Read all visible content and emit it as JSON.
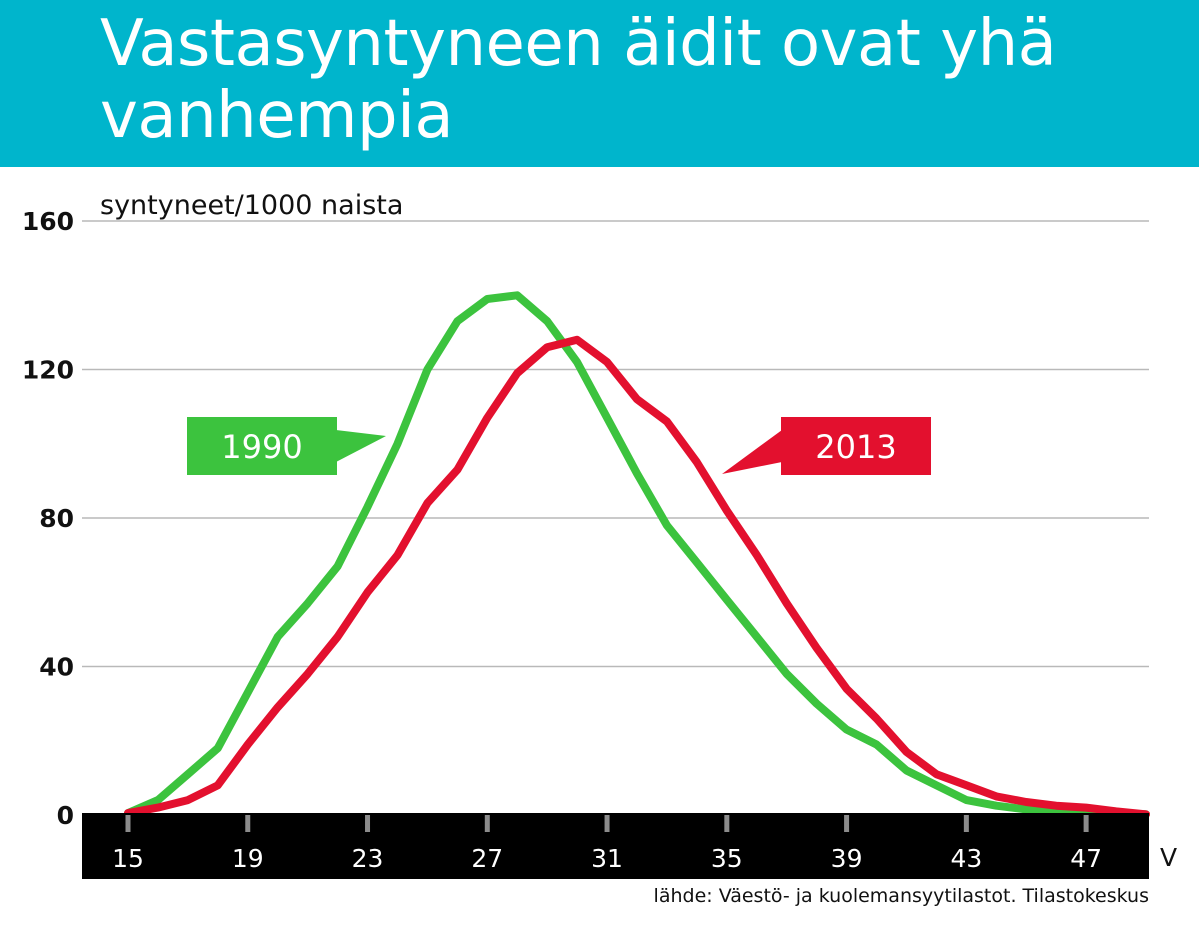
{
  "header": {
    "title": "Vastasyntyneen äidit ovat yhä vanhempia"
  },
  "chart_data": {
    "type": "line",
    "ylabel": "syntyneet/1000 naista",
    "xlabel": "V",
    "xlim": [
      15,
      49
    ],
    "ylim": [
      0,
      160
    ],
    "x_ticks": [
      15,
      19,
      23,
      27,
      31,
      35,
      39,
      43,
      47
    ],
    "y_ticks": [
      0,
      40,
      80,
      120,
      160
    ],
    "grid": true,
    "series": [
      {
        "name": "1990",
        "color": "#3cc33e",
        "x": [
          15,
          16,
          17,
          18,
          19,
          20,
          21,
          22,
          23,
          24,
          25,
          26,
          27,
          28,
          29,
          30,
          31,
          32,
          33,
          34,
          35,
          36,
          37,
          38,
          39,
          40,
          41,
          42,
          43,
          44,
          45,
          46,
          47,
          48,
          49
        ],
        "y": [
          0.5,
          4,
          11,
          18,
          33,
          48,
          57,
          67,
          83,
          100,
          120,
          133,
          139,
          140,
          133,
          122,
          107,
          92,
          78,
          68,
          58,
          48,
          38,
          30,
          23,
          19,
          12,
          8,
          4,
          2.5,
          1.5,
          1,
          0.8,
          0.5,
          0.2
        ]
      },
      {
        "name": "2013",
        "color": "#e3102e",
        "x": [
          15,
          16,
          17,
          18,
          19,
          20,
          21,
          22,
          23,
          24,
          25,
          26,
          27,
          28,
          29,
          30,
          31,
          32,
          33,
          34,
          35,
          36,
          37,
          38,
          39,
          40,
          41,
          42,
          43,
          44,
          45,
          46,
          47,
          48,
          49
        ],
        "y": [
          0.5,
          2,
          4,
          8,
          19,
          29,
          38,
          48,
          60,
          70,
          84,
          93,
          107,
          119,
          126,
          128,
          122,
          112,
          106,
          95,
          82,
          70,
          57,
          45,
          34,
          26,
          17,
          11,
          8,
          5,
          3.5,
          2.5,
          2,
          1,
          0.2
        ]
      }
    ]
  },
  "source": "lähde: Väestö- ja kuolemansyytilastot. Tilastokeskus"
}
